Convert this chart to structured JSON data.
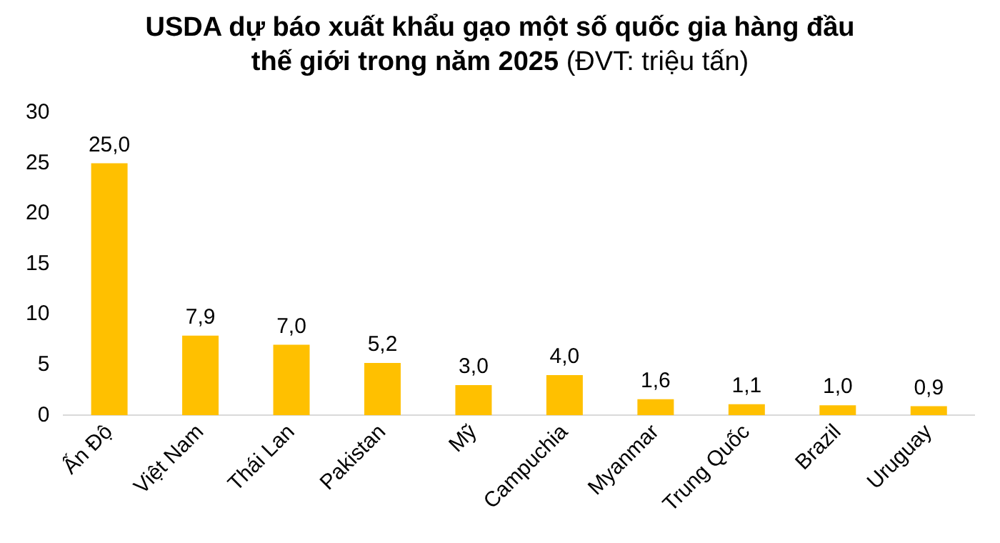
{
  "chart_data": {
    "type": "bar",
    "title": "USDA dự báo xuất khẩu gạo một số quốc gia hàng đầu thế giới trong năm 2025",
    "subtitle": "(ĐVT: triệu tấn)",
    "categories": [
      "Ấn Độ",
      "Việt Nam",
      "Thái Lan",
      "Pakistan",
      "Mỹ",
      "Campuchia",
      "Myanmar",
      "Trung Quốc",
      "Brazil",
      "Uruguay"
    ],
    "values": [
      25.0,
      7.9,
      7.0,
      5.2,
      3.0,
      4.0,
      1.6,
      1.1,
      1.0,
      0.9
    ],
    "value_labels": [
      "25,0",
      "7,9",
      "7,0",
      "5,2",
      "3,0",
      "4,0",
      "1,6",
      "1,1",
      "1,0",
      "0,9"
    ],
    "color": "#ffc000",
    "ylim": [
      0,
      30
    ],
    "yticks": [
      0,
      5,
      10,
      15,
      20,
      25,
      30
    ],
    "grid": false
  }
}
